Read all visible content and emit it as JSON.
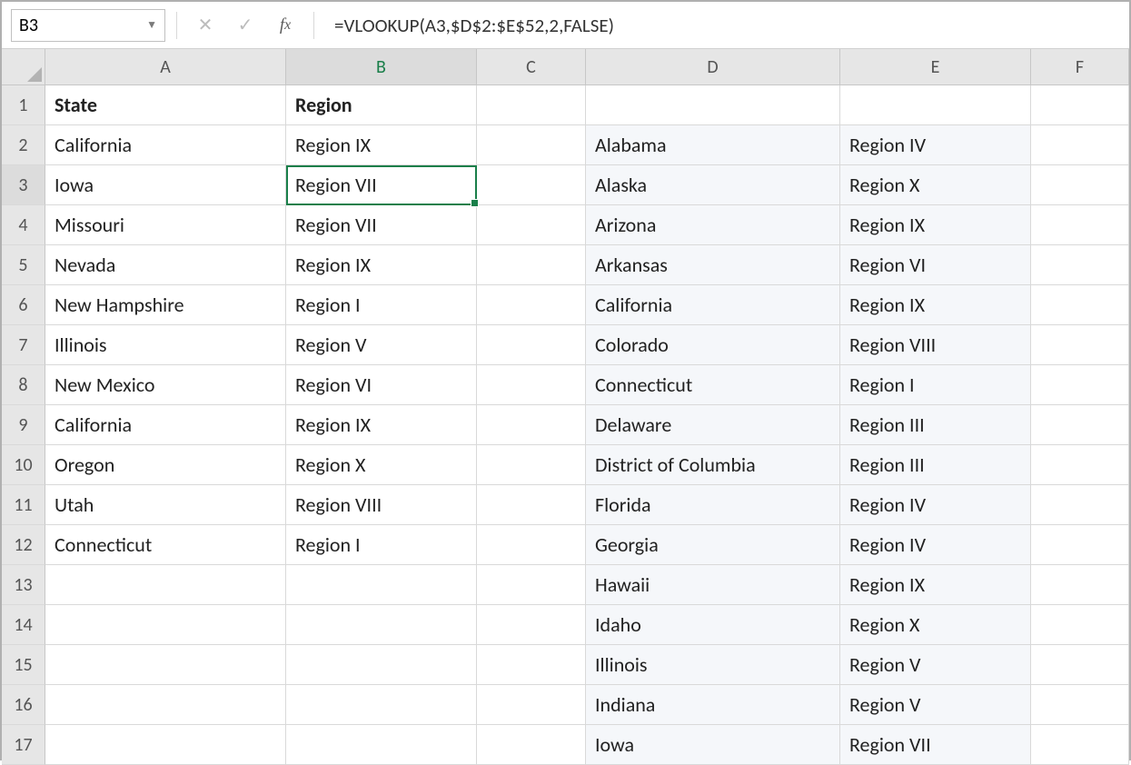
{
  "nameBox": {
    "value": "B3"
  },
  "formulaBar": {
    "formula": "=VLOOKUP(A3,$D$2:$E$52,2,FALSE)"
  },
  "columns": [
    "A",
    "B",
    "C",
    "D",
    "E",
    "F"
  ],
  "activeColumnIndex": 1,
  "activeRowIndex": 2,
  "selectedCell": {
    "row": 2,
    "col": 1
  },
  "rowCount": 17,
  "headerRow": {
    "A": "State",
    "B": "Region"
  },
  "leftTable": [
    {
      "state": "California",
      "region": "Region IX"
    },
    {
      "state": "Iowa",
      "region": "Region VII"
    },
    {
      "state": "Missouri",
      "region": "Region VII"
    },
    {
      "state": "Nevada",
      "region": "Region IX"
    },
    {
      "state": "New Hampshire",
      "region": "Region I"
    },
    {
      "state": "Illinois",
      "region": "Region V"
    },
    {
      "state": "New Mexico",
      "region": "Region VI"
    },
    {
      "state": "California",
      "region": "Region IX"
    },
    {
      "state": "Oregon",
      "region": "Region X"
    },
    {
      "state": "Utah",
      "region": "Region VIII"
    },
    {
      "state": "Connecticut",
      "region": "Region I"
    }
  ],
  "rightTable": [
    {
      "state": "Alabama",
      "region": "Region IV"
    },
    {
      "state": "Alaska",
      "region": "Region X"
    },
    {
      "state": "Arizona",
      "region": "Region IX"
    },
    {
      "state": "Arkansas",
      "region": "Region VI"
    },
    {
      "state": "California",
      "region": "Region IX"
    },
    {
      "state": "Colorado",
      "region": "Region VIII"
    },
    {
      "state": "Connecticut",
      "region": "Region I"
    },
    {
      "state": "Delaware",
      "region": "Region III"
    },
    {
      "state": "District of Columbia",
      "region": "Region III"
    },
    {
      "state": "Florida",
      "region": "Region IV"
    },
    {
      "state": "Georgia",
      "region": "Region IV"
    },
    {
      "state": "Hawaii",
      "region": "Region IX"
    },
    {
      "state": "Idaho",
      "region": "Region X"
    },
    {
      "state": "Illinois",
      "region": "Region V"
    },
    {
      "state": "Indiana",
      "region": "Region V"
    },
    {
      "state": "Iowa",
      "region": "Region VII"
    }
  ],
  "style": {
    "selectedBorderColor": "#1a7f4a",
    "headerBg": "#e6e6e6",
    "cellBorder": "#d9d9d9",
    "shadedBg": "#f5f7fa",
    "fontFamily": "Calibri",
    "cellFontSize": 22,
    "headerFontSize": 20
  }
}
